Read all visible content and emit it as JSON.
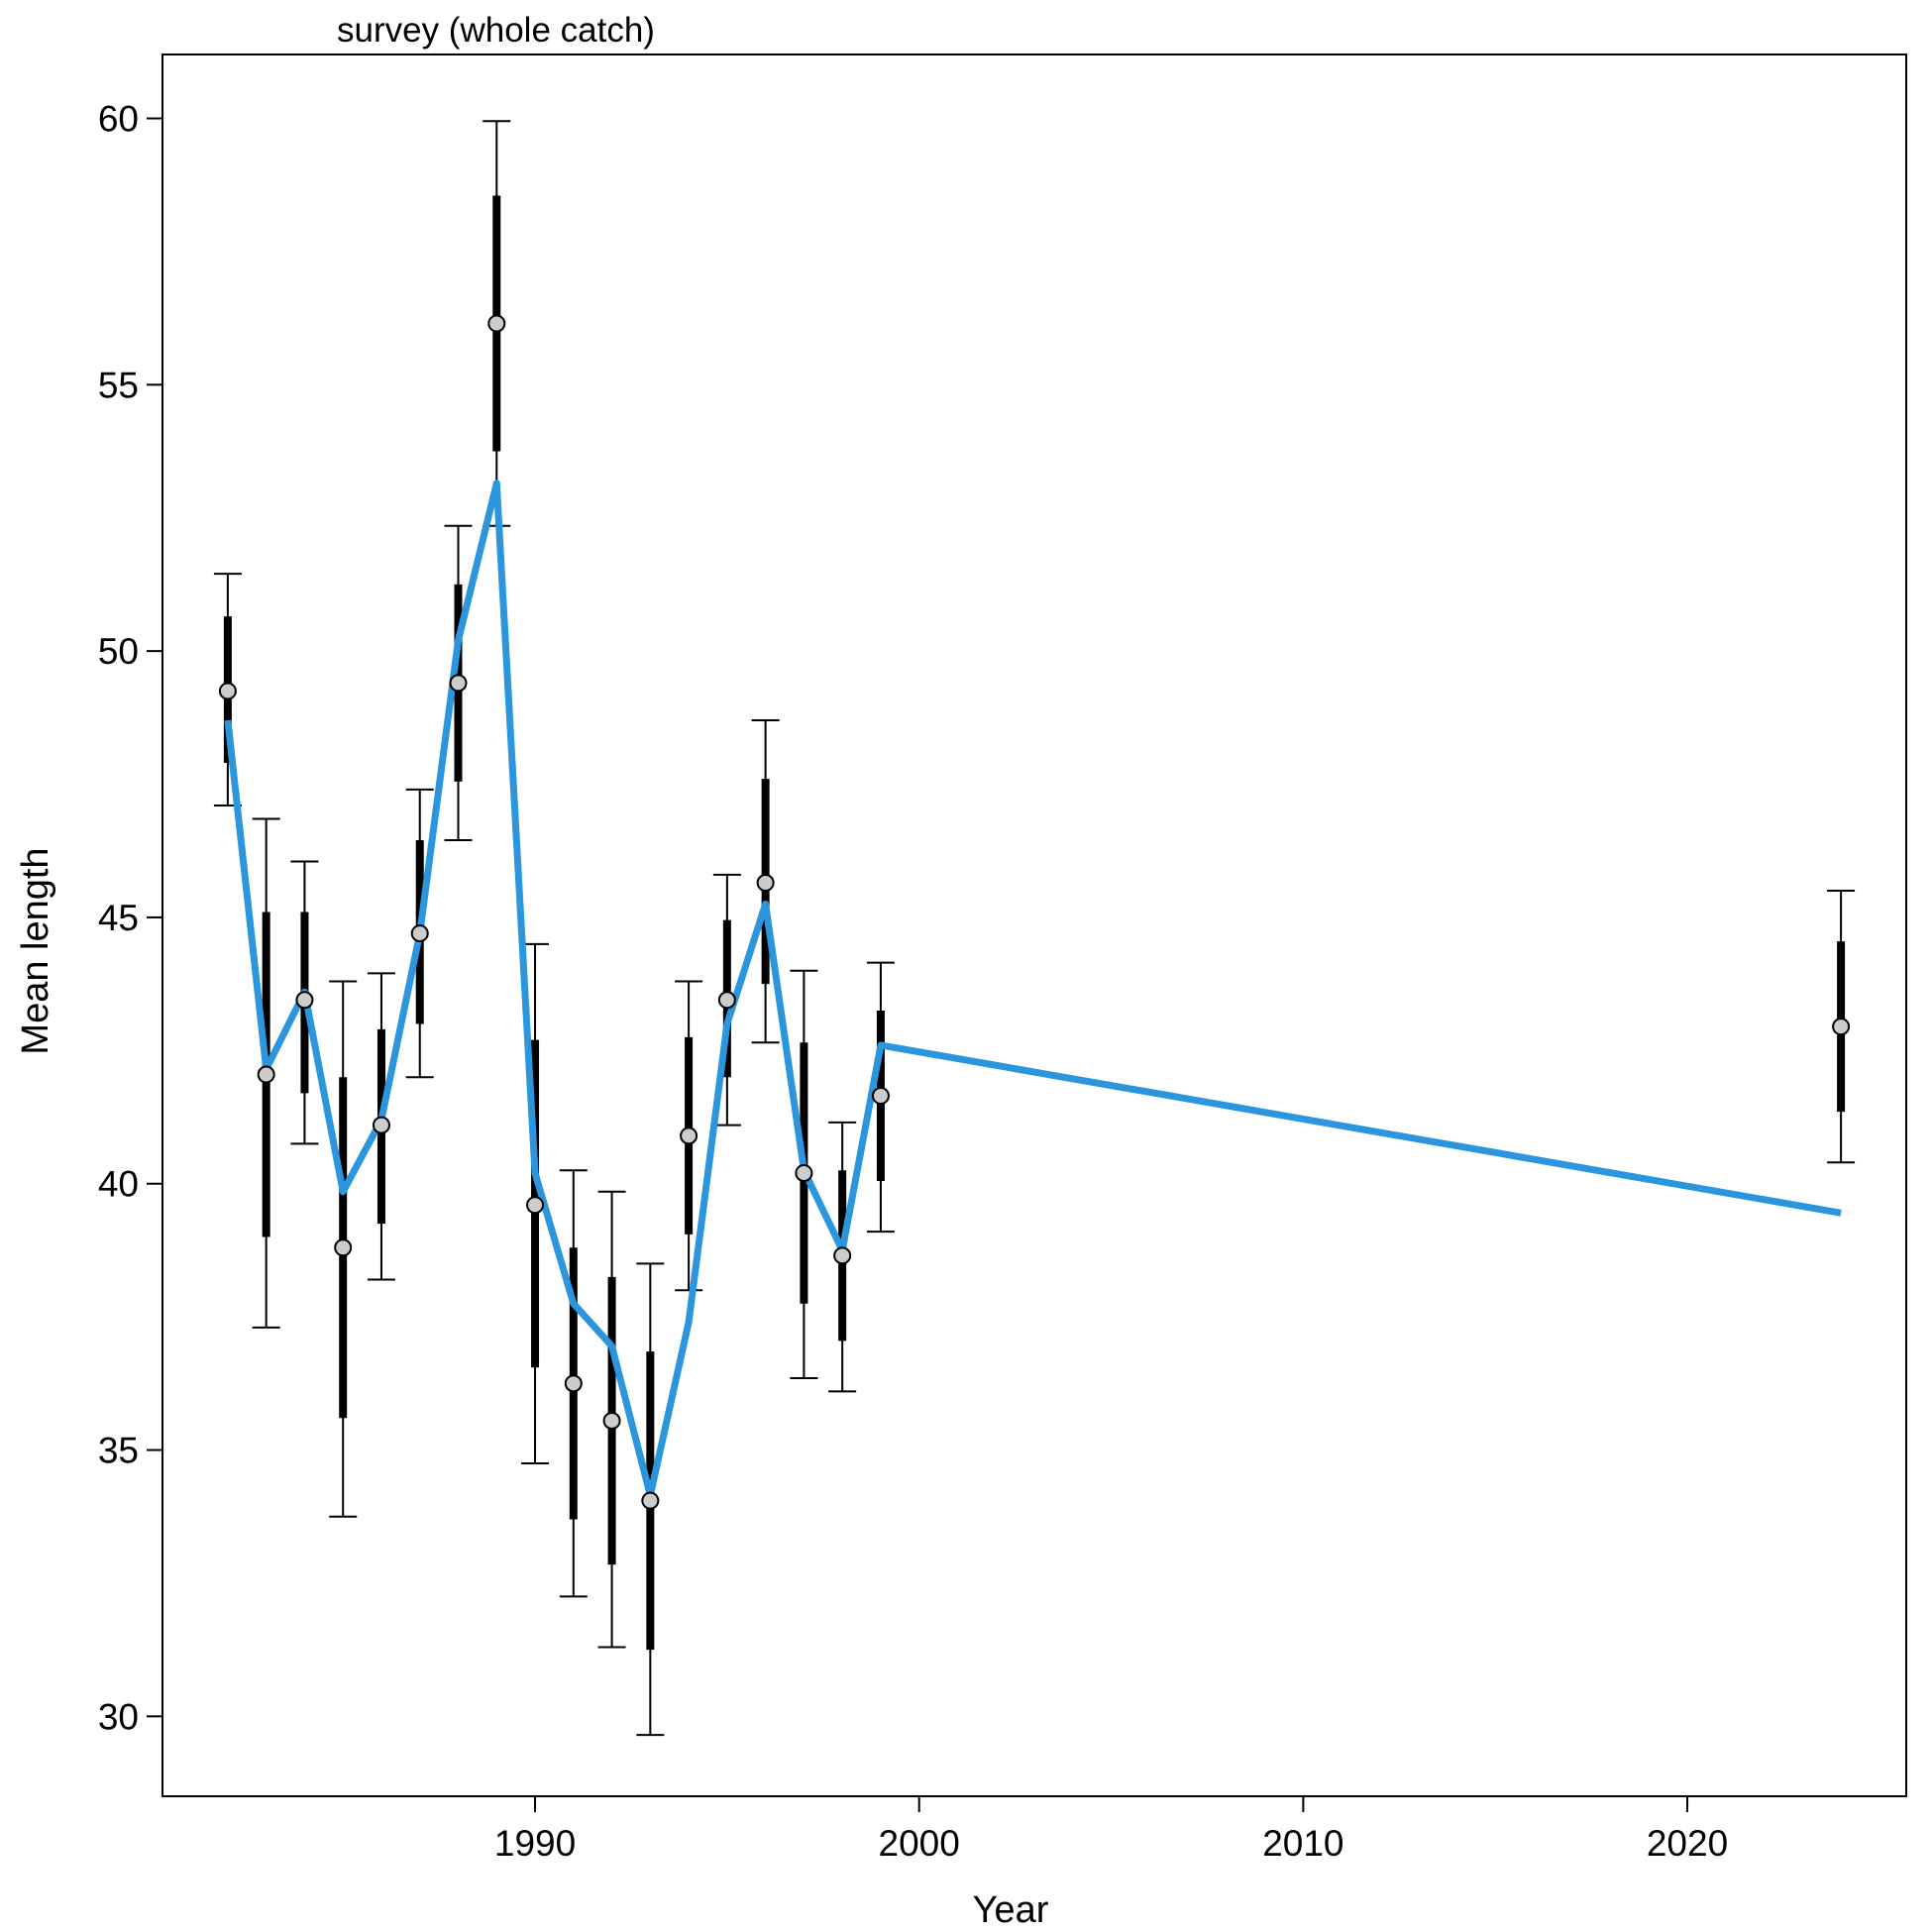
{
  "chart_data": {
    "type": "scatter",
    "title": "survey (whole catch)",
    "xlabel": "Year",
    "ylabel": "Mean length",
    "xlim": [
      1980.3,
      2025.7
    ],
    "ylim": [
      28.5,
      61.2
    ],
    "x_ticks": [
      1990,
      2000,
      2010,
      2020
    ],
    "y_ticks": [
      30,
      35,
      40,
      45,
      50,
      55,
      60
    ],
    "grid": false,
    "legend": "none",
    "colors": {
      "fit_line": "#2b95dd",
      "points_fill": "#cccccc",
      "points_stroke": "#000000",
      "interval": "#000000"
    },
    "series": [
      {
        "kind": "observed",
        "points": [
          {
            "x": 1982,
            "y": 49.25,
            "inner_low": 47.9,
            "inner_high": 50.65,
            "outer_low": 47.1,
            "outer_high": 51.45
          },
          {
            "x": 1983,
            "y": 42.05,
            "inner_low": 39.0,
            "inner_high": 45.1,
            "outer_low": 37.3,
            "outer_high": 46.85
          },
          {
            "x": 1984,
            "y": 43.45,
            "inner_low": 41.7,
            "inner_high": 45.1,
            "outer_low": 40.75,
            "outer_high": 46.05
          },
          {
            "x": 1985,
            "y": 38.8,
            "inner_low": 35.6,
            "inner_high": 42.0,
            "outer_low": 33.75,
            "outer_high": 43.8
          },
          {
            "x": 1986,
            "y": 41.1,
            "inner_low": 39.25,
            "inner_high": 42.9,
            "outer_low": 38.2,
            "outer_high": 43.95
          },
          {
            "x": 1987,
            "y": 44.7,
            "inner_low": 43.0,
            "inner_high": 46.45,
            "outer_low": 42.0,
            "outer_high": 47.4
          },
          {
            "x": 1988,
            "y": 49.4,
            "inner_low": 47.55,
            "inner_high": 51.25,
            "outer_low": 46.45,
            "outer_high": 52.35
          },
          {
            "x": 1989,
            "y": 56.15,
            "inner_low": 53.75,
            "inner_high": 58.55,
            "outer_low": 52.35,
            "outer_high": 59.95
          },
          {
            "x": 1990,
            "y": 39.6,
            "inner_low": 36.55,
            "inner_high": 42.7,
            "outer_low": 34.75,
            "outer_high": 44.5
          },
          {
            "x": 1991,
            "y": 36.25,
            "inner_low": 33.7,
            "inner_high": 38.8,
            "outer_low": 32.25,
            "outer_high": 40.25
          },
          {
            "x": 1992,
            "y": 35.55,
            "inner_low": 32.85,
            "inner_high": 38.25,
            "outer_low": 31.3,
            "outer_high": 39.85
          },
          {
            "x": 1993,
            "y": 34.05,
            "inner_low": 31.25,
            "inner_high": 36.85,
            "outer_low": 29.65,
            "outer_high": 38.5
          },
          {
            "x": 1994,
            "y": 40.9,
            "inner_low": 39.05,
            "inner_high": 42.75,
            "outer_low": 38.0,
            "outer_high": 43.8
          },
          {
            "x": 1995,
            "y": 43.45,
            "inner_low": 42.0,
            "inner_high": 44.95,
            "outer_low": 41.1,
            "outer_high": 45.8
          },
          {
            "x": 1996,
            "y": 45.65,
            "inner_low": 43.75,
            "inner_high": 47.6,
            "outer_low": 42.65,
            "outer_high": 48.7
          },
          {
            "x": 1997,
            "y": 40.2,
            "inner_low": 37.75,
            "inner_high": 42.65,
            "outer_low": 36.35,
            "outer_high": 44.0
          },
          {
            "x": 1998,
            "y": 38.65,
            "inner_low": 37.05,
            "inner_high": 40.25,
            "outer_low": 36.1,
            "outer_high": 41.15
          },
          {
            "x": 1999,
            "y": 41.65,
            "inner_low": 40.05,
            "inner_high": 43.25,
            "outer_low": 39.1,
            "outer_high": 44.15
          },
          {
            "x": 2024,
            "y": 42.95,
            "inner_low": 41.35,
            "inner_high": 44.55,
            "outer_low": 40.4,
            "outer_high": 45.5
          }
        ]
      },
      {
        "kind": "expected_line",
        "points": [
          {
            "x": 1982,
            "y": 48.7
          },
          {
            "x": 1983,
            "y": 42.15
          },
          {
            "x": 1984,
            "y": 43.6
          },
          {
            "x": 1985,
            "y": 39.85
          },
          {
            "x": 1986,
            "y": 41.2
          },
          {
            "x": 1987,
            "y": 44.7
          },
          {
            "x": 1988,
            "y": 50.2
          },
          {
            "x": 1989,
            "y": 53.15
          },
          {
            "x": 1990,
            "y": 40.2
          },
          {
            "x": 1991,
            "y": 37.75
          },
          {
            "x": 1992,
            "y": 36.95
          },
          {
            "x": 1993,
            "y": 34.15
          },
          {
            "x": 1994,
            "y": 37.4
          },
          {
            "x": 1995,
            "y": 43.0
          },
          {
            "x": 1996,
            "y": 45.25
          },
          {
            "x": 1997,
            "y": 40.25
          },
          {
            "x": 1998,
            "y": 38.75
          },
          {
            "x": 1999,
            "y": 42.6
          },
          {
            "x": 2024,
            "y": 39.45
          }
        ]
      }
    ]
  }
}
